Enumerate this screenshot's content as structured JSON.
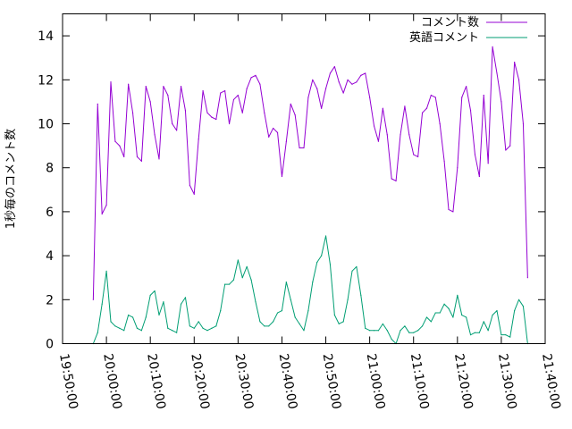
{
  "chart_data": {
    "type": "line",
    "title": "",
    "xlabel": "",
    "ylabel": "1秒毎のコメント数",
    "xlim": [
      "19:50:00",
      "21:40:00"
    ],
    "ylim": [
      0,
      15
    ],
    "x_ticks": [
      "19:50:00",
      "20:00:00",
      "20:10:00",
      "20:20:00",
      "20:30:00",
      "20:40:00",
      "20:50:00",
      "21:00:00",
      "21:10:00",
      "21:20:00",
      "21:30:00",
      "21:40:00"
    ],
    "y_ticks": [
      0,
      2,
      4,
      6,
      8,
      10,
      12,
      14
    ],
    "grid": false,
    "legend_position": "top-right",
    "series": [
      {
        "name": "コメント数",
        "color": "#9400d3",
        "points": [
          [
            "19:57:00",
            2.0
          ],
          [
            "19:58:00",
            10.9
          ],
          [
            "19:59:00",
            5.9
          ],
          [
            "20:00:00",
            6.3
          ],
          [
            "20:01:00",
            11.9
          ],
          [
            "20:02:00",
            9.2
          ],
          [
            "20:03:00",
            9.0
          ],
          [
            "20:04:00",
            8.5
          ],
          [
            "20:05:00",
            11.8
          ],
          [
            "20:06:00",
            10.5
          ],
          [
            "20:07:00",
            8.5
          ],
          [
            "20:08:00",
            8.3
          ],
          [
            "20:09:00",
            11.7
          ],
          [
            "20:10:00",
            11.0
          ],
          [
            "20:11:00",
            9.5
          ],
          [
            "20:12:00",
            8.4
          ],
          [
            "20:13:00",
            11.7
          ],
          [
            "20:14:00",
            11.3
          ],
          [
            "20:15:00",
            10.0
          ],
          [
            "20:16:00",
            9.7
          ],
          [
            "20:17:00",
            11.7
          ],
          [
            "20:18:00",
            10.6
          ],
          [
            "20:19:00",
            7.2
          ],
          [
            "20:20:00",
            6.8
          ],
          [
            "20:21:00",
            9.3
          ],
          [
            "20:22:00",
            11.5
          ],
          [
            "20:23:00",
            10.5
          ],
          [
            "20:24:00",
            10.3
          ],
          [
            "20:25:00",
            10.2
          ],
          [
            "20:26:00",
            11.4
          ],
          [
            "20:27:00",
            11.5
          ],
          [
            "20:28:00",
            10.0
          ],
          [
            "20:29:00",
            11.1
          ],
          [
            "20:30:00",
            11.3
          ],
          [
            "20:31:00",
            10.5
          ],
          [
            "20:32:00",
            11.6
          ],
          [
            "20:33:00",
            12.1
          ],
          [
            "20:34:00",
            12.2
          ],
          [
            "20:35:00",
            11.8
          ],
          [
            "20:36:00",
            10.5
          ],
          [
            "20:37:00",
            9.4
          ],
          [
            "20:38:00",
            9.8
          ],
          [
            "20:39:00",
            9.6
          ],
          [
            "20:40:00",
            7.6
          ],
          [
            "20:41:00",
            9.2
          ],
          [
            "20:42:00",
            10.9
          ],
          [
            "20:43:00",
            10.4
          ],
          [
            "20:44:00",
            8.9
          ],
          [
            "20:45:00",
            8.9
          ],
          [
            "20:46:00",
            11.2
          ],
          [
            "20:47:00",
            12.0
          ],
          [
            "20:48:00",
            11.6
          ],
          [
            "20:49:00",
            10.7
          ],
          [
            "20:50:00",
            11.6
          ],
          [
            "20:51:00",
            12.3
          ],
          [
            "20:52:00",
            12.6
          ],
          [
            "20:53:00",
            11.9
          ],
          [
            "20:54:00",
            11.4
          ],
          [
            "20:55:00",
            12.0
          ],
          [
            "20:56:00",
            11.8
          ],
          [
            "20:57:00",
            11.9
          ],
          [
            "20:58:00",
            12.2
          ],
          [
            "20:59:00",
            12.3
          ],
          [
            "21:00:00",
            11.2
          ],
          [
            "21:01:00",
            9.9
          ],
          [
            "21:02:00",
            9.2
          ],
          [
            "21:03:00",
            10.7
          ],
          [
            "21:04:00",
            9.5
          ],
          [
            "21:05:00",
            7.5
          ],
          [
            "21:06:00",
            7.4
          ],
          [
            "21:07:00",
            9.5
          ],
          [
            "21:08:00",
            10.8
          ],
          [
            "21:09:00",
            9.5
          ],
          [
            "21:10:00",
            8.6
          ],
          [
            "21:11:00",
            8.5
          ],
          [
            "21:12:00",
            10.5
          ],
          [
            "21:13:00",
            10.7
          ],
          [
            "21:14:00",
            11.3
          ],
          [
            "21:15:00",
            11.2
          ],
          [
            "21:16:00",
            10.0
          ],
          [
            "21:17:00",
            8.3
          ],
          [
            "21:18:00",
            6.1
          ],
          [
            "21:19:00",
            6.0
          ],
          [
            "21:20:00",
            8.0
          ],
          [
            "21:21:00",
            11.2
          ],
          [
            "21:22:00",
            11.7
          ],
          [
            "21:23:00",
            10.6
          ],
          [
            "21:24:00",
            8.6
          ],
          [
            "21:25:00",
            7.6
          ],
          [
            "21:26:00",
            11.3
          ],
          [
            "21:27:00",
            8.2
          ],
          [
            "21:28:00",
            13.5
          ],
          [
            "21:29:00",
            12.3
          ],
          [
            "21:30:00",
            11.0
          ],
          [
            "21:31:00",
            8.8
          ],
          [
            "21:32:00",
            9.0
          ],
          [
            "21:33:00",
            12.8
          ],
          [
            "21:34:00",
            12.0
          ],
          [
            "21:35:00",
            10.0
          ],
          [
            "21:36:00",
            3.0
          ]
        ]
      },
      {
        "name": "英語コメント",
        "color": "#009e73",
        "points": [
          [
            "19:57:00",
            0.0
          ],
          [
            "19:58:00",
            0.5
          ],
          [
            "19:59:00",
            1.8
          ],
          [
            "20:00:00",
            3.3
          ],
          [
            "20:01:00",
            1.0
          ],
          [
            "20:02:00",
            0.8
          ],
          [
            "20:03:00",
            0.7
          ],
          [
            "20:04:00",
            0.6
          ],
          [
            "20:05:00",
            1.3
          ],
          [
            "20:06:00",
            1.2
          ],
          [
            "20:07:00",
            0.7
          ],
          [
            "20:08:00",
            0.6
          ],
          [
            "20:09:00",
            1.2
          ],
          [
            "20:10:00",
            2.2
          ],
          [
            "20:11:00",
            2.4
          ],
          [
            "20:12:00",
            1.3
          ],
          [
            "20:13:00",
            1.9
          ],
          [
            "20:14:00",
            0.7
          ],
          [
            "20:15:00",
            0.6
          ],
          [
            "20:16:00",
            0.5
          ],
          [
            "20:17:00",
            1.8
          ],
          [
            "20:18:00",
            2.1
          ],
          [
            "20:19:00",
            0.8
          ],
          [
            "20:20:00",
            0.7
          ],
          [
            "20:21:00",
            1.0
          ],
          [
            "20:22:00",
            0.7
          ],
          [
            "20:23:00",
            0.6
          ],
          [
            "20:24:00",
            0.7
          ],
          [
            "20:25:00",
            0.8
          ],
          [
            "20:26:00",
            1.5
          ],
          [
            "20:27:00",
            2.7
          ],
          [
            "20:28:00",
            2.7
          ],
          [
            "20:29:00",
            2.9
          ],
          [
            "20:30:00",
            3.8
          ],
          [
            "20:31:00",
            3.0
          ],
          [
            "20:32:00",
            3.5
          ],
          [
            "20:33:00",
            2.9
          ],
          [
            "20:34:00",
            1.9
          ],
          [
            "20:35:00",
            1.0
          ],
          [
            "20:36:00",
            0.8
          ],
          [
            "20:37:00",
            0.8
          ],
          [
            "20:38:00",
            1.0
          ],
          [
            "20:39:00",
            1.4
          ],
          [
            "20:40:00",
            1.5
          ],
          [
            "20:41:00",
            2.8
          ],
          [
            "20:42:00",
            2.0
          ],
          [
            "20:43:00",
            1.2
          ],
          [
            "20:44:00",
            0.9
          ],
          [
            "20:45:00",
            0.6
          ],
          [
            "20:46:00",
            1.5
          ],
          [
            "20:47:00",
            2.8
          ],
          [
            "20:48:00",
            3.7
          ],
          [
            "20:49:00",
            4.0
          ],
          [
            "20:50:00",
            4.9
          ],
          [
            "20:51:00",
            3.6
          ],
          [
            "20:52:00",
            1.3
          ],
          [
            "20:53:00",
            0.9
          ],
          [
            "20:54:00",
            1.0
          ],
          [
            "20:55:00",
            2.0
          ],
          [
            "20:56:00",
            3.3
          ],
          [
            "20:57:00",
            3.5
          ],
          [
            "20:58:00",
            2.2
          ],
          [
            "20:59:00",
            0.7
          ],
          [
            "21:00:00",
            0.6
          ],
          [
            "21:01:00",
            0.6
          ],
          [
            "21:02:00",
            0.6
          ],
          [
            "21:03:00",
            0.9
          ],
          [
            "21:04:00",
            0.6
          ],
          [
            "21:05:00",
            0.2
          ],
          [
            "21:06:00",
            0.0
          ],
          [
            "21:07:00",
            0.6
          ],
          [
            "21:08:00",
            0.8
          ],
          [
            "21:09:00",
            0.5
          ],
          [
            "21:10:00",
            0.5
          ],
          [
            "21:11:00",
            0.6
          ],
          [
            "21:12:00",
            0.8
          ],
          [
            "21:13:00",
            1.2
          ],
          [
            "21:14:00",
            1.0
          ],
          [
            "21:15:00",
            1.4
          ],
          [
            "21:16:00",
            1.4
          ],
          [
            "21:17:00",
            1.8
          ],
          [
            "21:18:00",
            1.6
          ],
          [
            "21:19:00",
            1.2
          ],
          [
            "21:20:00",
            2.2
          ],
          [
            "21:21:00",
            1.3
          ],
          [
            "21:22:00",
            1.2
          ],
          [
            "21:23:00",
            0.4
          ],
          [
            "21:24:00",
            0.5
          ],
          [
            "21:25:00",
            0.5
          ],
          [
            "21:26:00",
            1.0
          ],
          [
            "21:27:00",
            0.6
          ],
          [
            "21:28:00",
            1.3
          ],
          [
            "21:29:00",
            1.5
          ],
          [
            "21:30:00",
            0.4
          ],
          [
            "21:31:00",
            0.4
          ],
          [
            "21:32:00",
            0.3
          ],
          [
            "21:33:00",
            1.5
          ],
          [
            "21:34:00",
            2.0
          ],
          [
            "21:35:00",
            1.7
          ],
          [
            "21:36:00",
            0.0
          ]
        ]
      }
    ]
  }
}
